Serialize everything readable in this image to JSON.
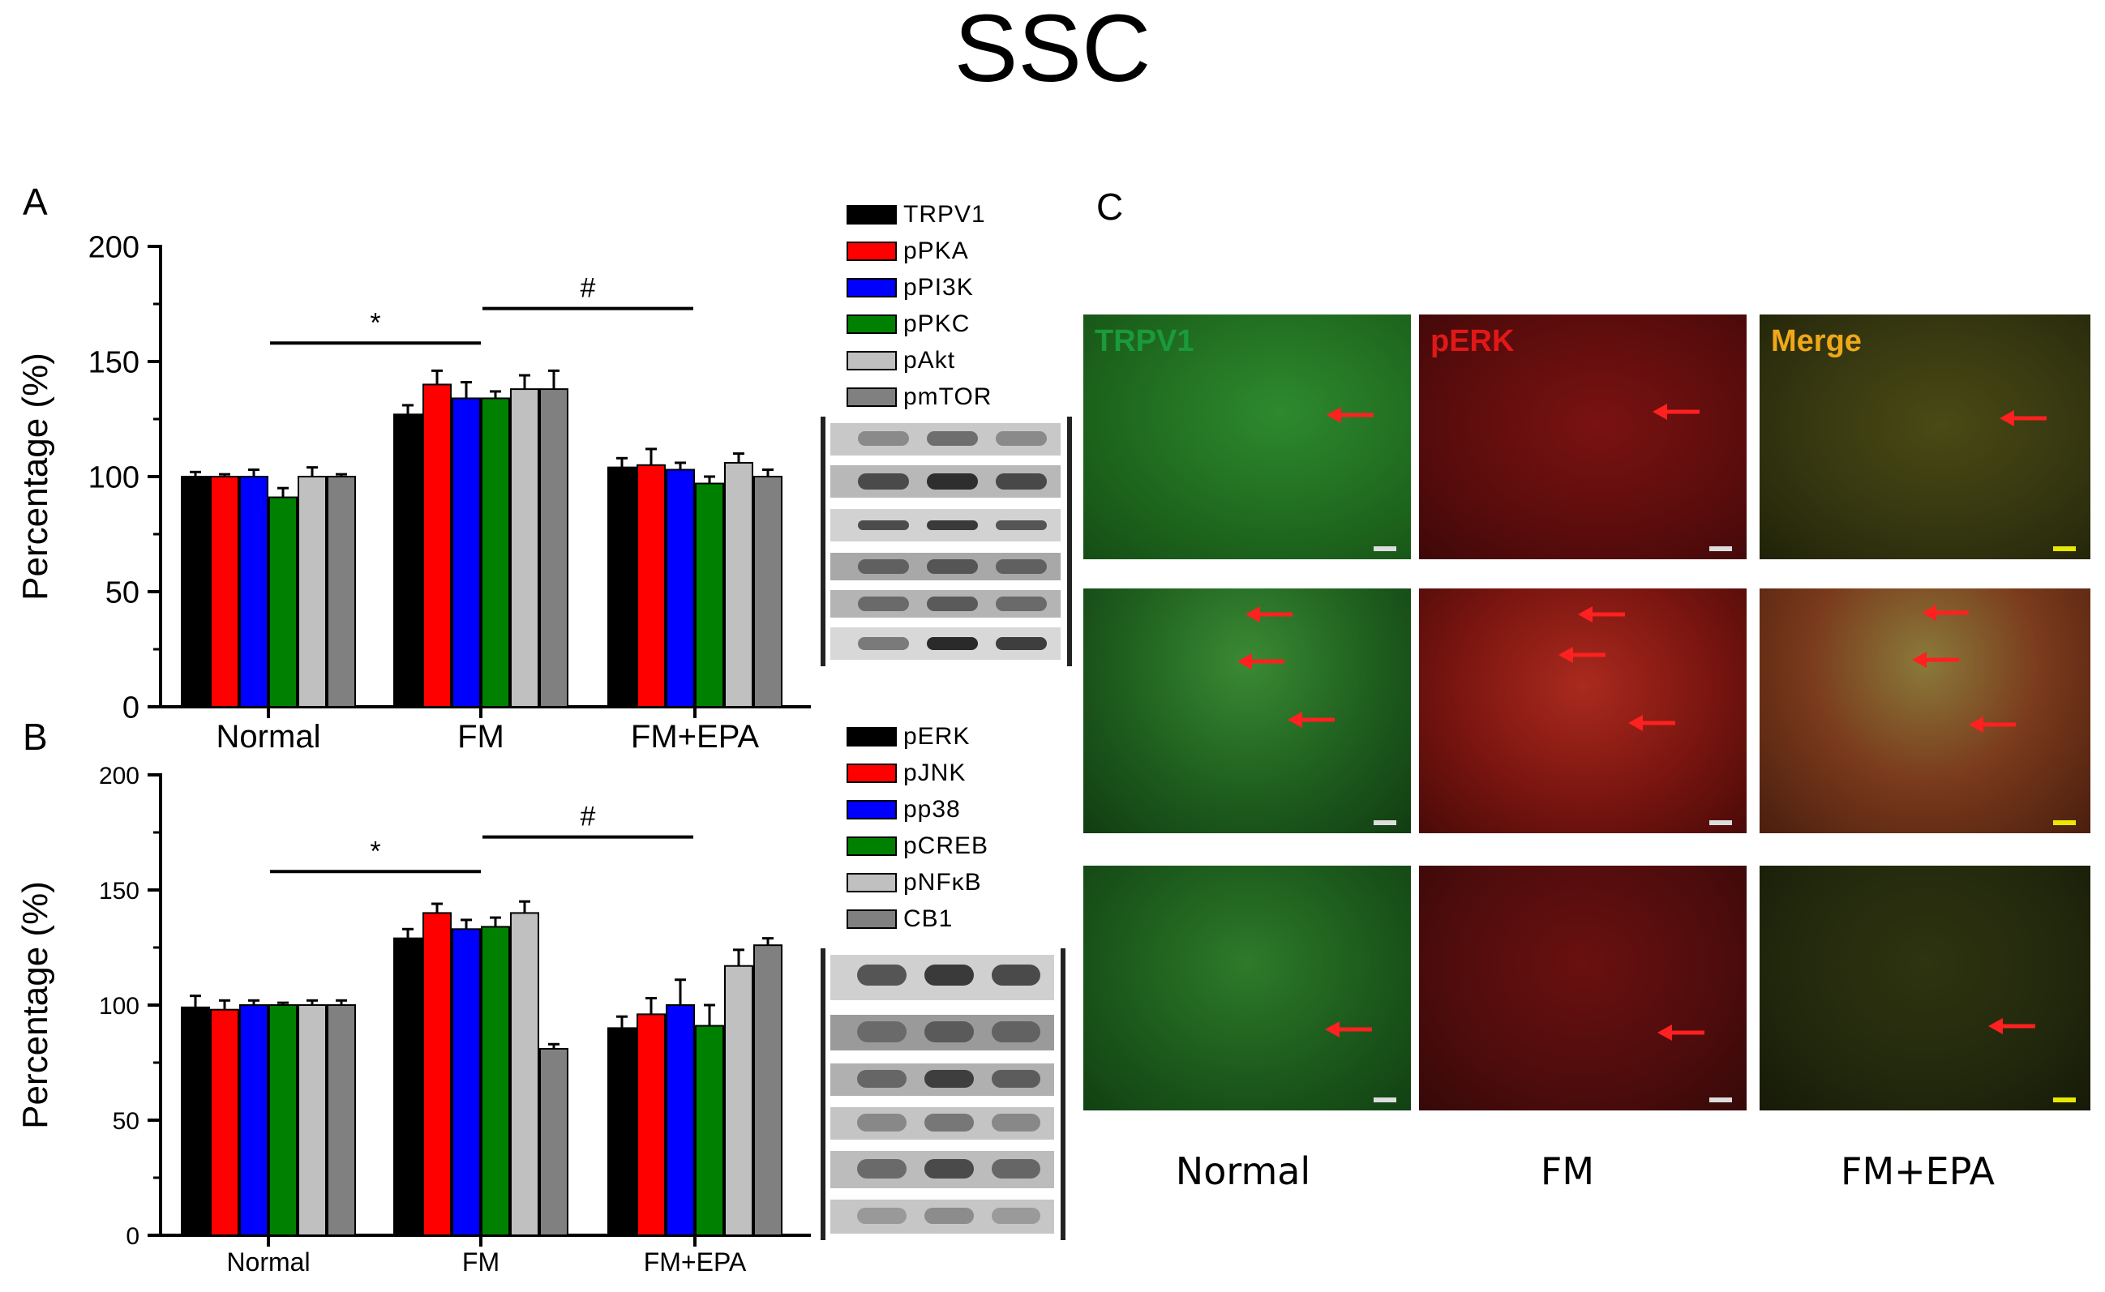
{
  "title": "SSC",
  "colors": {
    "series": [
      "#000000",
      "#ff0000",
      "#0000ff",
      "#008000",
      "#c0c0c0",
      "#808080"
    ],
    "arrow": "#ff2020"
  },
  "chart_data": [
    {
      "panel": "A",
      "type": "bar",
      "categories": [
        "Normal",
        "FM",
        "FM+EPA"
      ],
      "ylabel": "Percentage (%)",
      "ylim": [
        0,
        200
      ],
      "yticks": [
        0,
        50,
        100,
        150,
        200
      ],
      "series": [
        {
          "name": "TRPV1",
          "values": [
            100,
            127,
            104
          ],
          "errors": [
            2,
            4,
            4
          ]
        },
        {
          "name": "pPKA",
          "values": [
            100,
            140,
            105
          ],
          "errors": [
            1,
            6,
            7
          ]
        },
        {
          "name": "pPI3K",
          "values": [
            100,
            134,
            103
          ],
          "errors": [
            3,
            7,
            3
          ]
        },
        {
          "name": "pPKC",
          "values": [
            91,
            134,
            97
          ],
          "errors": [
            4,
            3,
            3
          ]
        },
        {
          "name": "pAkt",
          "values": [
            100,
            138,
            106
          ],
          "errors": [
            4,
            6,
            4
          ]
        },
        {
          "name": "pmTOR",
          "values": [
            100,
            138,
            100
          ],
          "errors": [
            1,
            8,
            3
          ]
        }
      ],
      "annotations": [
        {
          "text": "*",
          "from": "Normal",
          "to": "FM",
          "y": 158
        },
        {
          "text": "#",
          "from": "FM",
          "to": "FM+EPA",
          "y": 173
        }
      ]
    },
    {
      "panel": "B",
      "type": "bar",
      "categories": [
        "Normal",
        "FM",
        "FM+EPA"
      ],
      "ylabel": "Percentage (%)",
      "ylim": [
        0,
        200
      ],
      "yticks": [
        0,
        50,
        100,
        150,
        200
      ],
      "series": [
        {
          "name": "pERK",
          "values": [
            99,
            129,
            90
          ],
          "errors": [
            5,
            4,
            5
          ]
        },
        {
          "name": "pJNK",
          "values": [
            98,
            140,
            96
          ],
          "errors": [
            4,
            4,
            7
          ]
        },
        {
          "name": "pp38",
          "values": [
            100,
            133,
            100
          ],
          "errors": [
            2,
            4,
            11
          ]
        },
        {
          "name": "pCREB",
          "values": [
            100,
            134,
            91
          ],
          "errors": [
            1,
            4,
            9
          ]
        },
        {
          "name": "pNFκB",
          "values": [
            100,
            140,
            117
          ],
          "errors": [
            2,
            5,
            7
          ]
        },
        {
          "name": "CB1",
          "values": [
            100,
            81,
            126
          ],
          "errors": [
            2,
            2,
            3
          ]
        }
      ],
      "annotations": [
        {
          "text": "*",
          "from": "Normal",
          "to": "FM",
          "y": 158
        },
        {
          "text": "#",
          "from": "FM",
          "to": "FM+EPA",
          "y": 173
        }
      ]
    }
  ],
  "panel_c": {
    "letter": "C",
    "channels": [
      "TRPV1",
      "pERK",
      "Merge"
    ],
    "columns": [
      "Normal",
      "FM",
      "FM+EPA"
    ]
  }
}
